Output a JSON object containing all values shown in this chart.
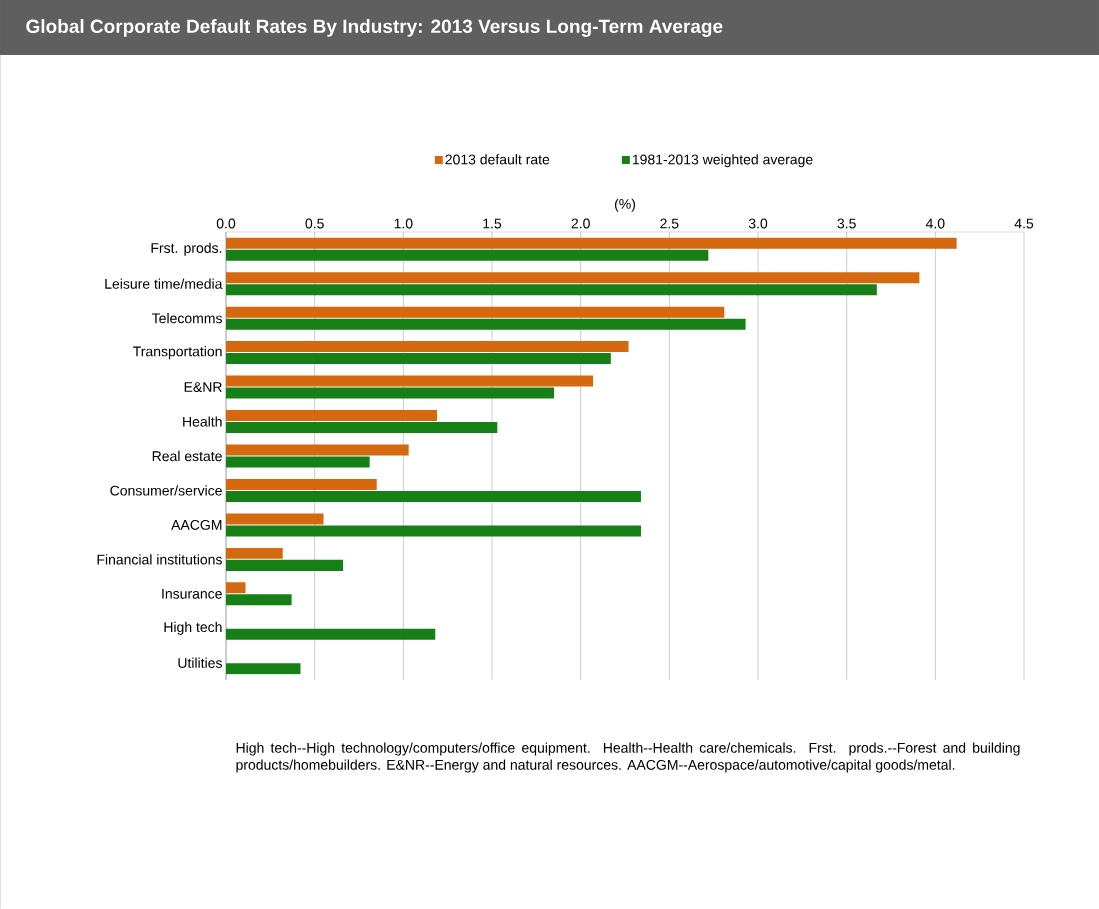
{
  "chart_data": {
    "type": "bar",
    "orientation": "horizontal",
    "title": "Global Corporate Default Rates By Industry: 2013 Versus Long-Term Average",
    "xlabel": "(%)",
    "categories": [
      "Frst. prods.",
      "Leisure time/media",
      "Telecomms",
      "Transportation",
      "E&NR",
      "Health",
      "Real estate",
      "Consumer/service",
      "AACGM",
      "Financial institutions",
      "Insurance",
      "High tech",
      "Utilities"
    ],
    "series": [
      {
        "name": "2013 default rate",
        "color": "#d4690f",
        "values": [
          4.12,
          3.91,
          2.81,
          2.27,
          2.07,
          1.19,
          1.03,
          0.85,
          0.55,
          0.32,
          0.11,
          0,
          0
        ]
      },
      {
        "name": "1981-2013 weighted average",
        "color": "#168016",
        "values": [
          2.72,
          3.67,
          2.93,
          2.17,
          1.85,
          1.53,
          0.81,
          2.34,
          2.34,
          0.66,
          0.37,
          1.18,
          0.42
        ]
      }
    ],
    "xlim": [
      0,
      4.5
    ],
    "xticks": [
      {
        "value": 0,
        "label": "0.0"
      },
      {
        "value": 0.5,
        "label": "0.5"
      },
      {
        "value": 1,
        "label": "1.0"
      },
      {
        "value": 1.5,
        "label": "1.5"
      },
      {
        "value": 2,
        "label": "2.0"
      },
      {
        "value": 2.5,
        "label": "2.5"
      },
      {
        "value": 3,
        "label": "3.0"
      },
      {
        "value": 3.5,
        "label": "3.5"
      },
      {
        "value": 4,
        "label": "4.0"
      },
      {
        "value": 4.5,
        "label": "4.5"
      }
    ],
    "grid": "x",
    "legend": "top",
    "annotations": [
      "High tech--High technology/computers/office equipment. Health--Health care/chemicals. Frst. prods.--Forest and building products/homebuilders. E&NR--Energy and natural resources. AACGM--Aerospace/automotive/capital goods/metal."
    ]
  }
}
